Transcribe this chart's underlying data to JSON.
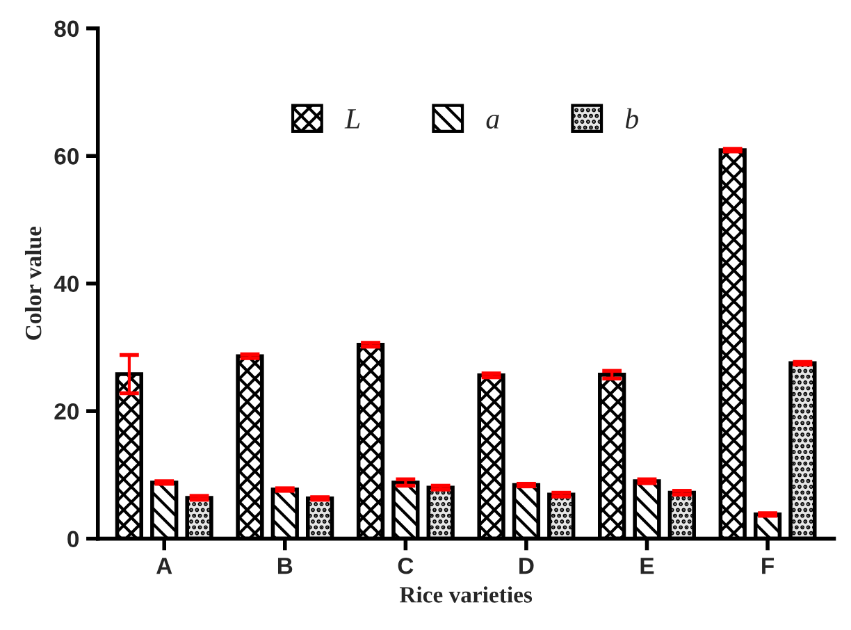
{
  "chart_data": {
    "type": "bar",
    "xlabel": "Rice varieties",
    "ylabel": "Color value",
    "categories": [
      "A",
      "B",
      "C",
      "D",
      "E",
      "F"
    ],
    "series": [
      {
        "name": "L",
        "color": "#000000",
        "values": [
          25.8,
          28.6,
          30.4,
          25.6,
          25.7,
          60.9
        ],
        "errors": [
          3,
          0.3,
          0.3,
          0.3,
          0.6,
          0.2
        ]
      },
      {
        "name": "a",
        "color": "#000000",
        "values": [
          8.8,
          7.7,
          8.8,
          8.4,
          9.0,
          3.8
        ],
        "errors": [
          0.2,
          0.2,
          0.5,
          0.2,
          0.3,
          0.2
        ]
      },
      {
        "name": "b",
        "color": "#000000",
        "values": [
          6.4,
          6.3,
          8.0,
          6.9,
          7.2,
          27.5
        ],
        "errors": [
          0.3,
          0.2,
          0.3,
          0.3,
          0.3,
          0.2
        ]
      }
    ],
    "ylim": [
      0,
      80
    ],
    "yticks": [
      0,
      20,
      40,
      60,
      80
    ],
    "grid": false,
    "legend": "top"
  }
}
